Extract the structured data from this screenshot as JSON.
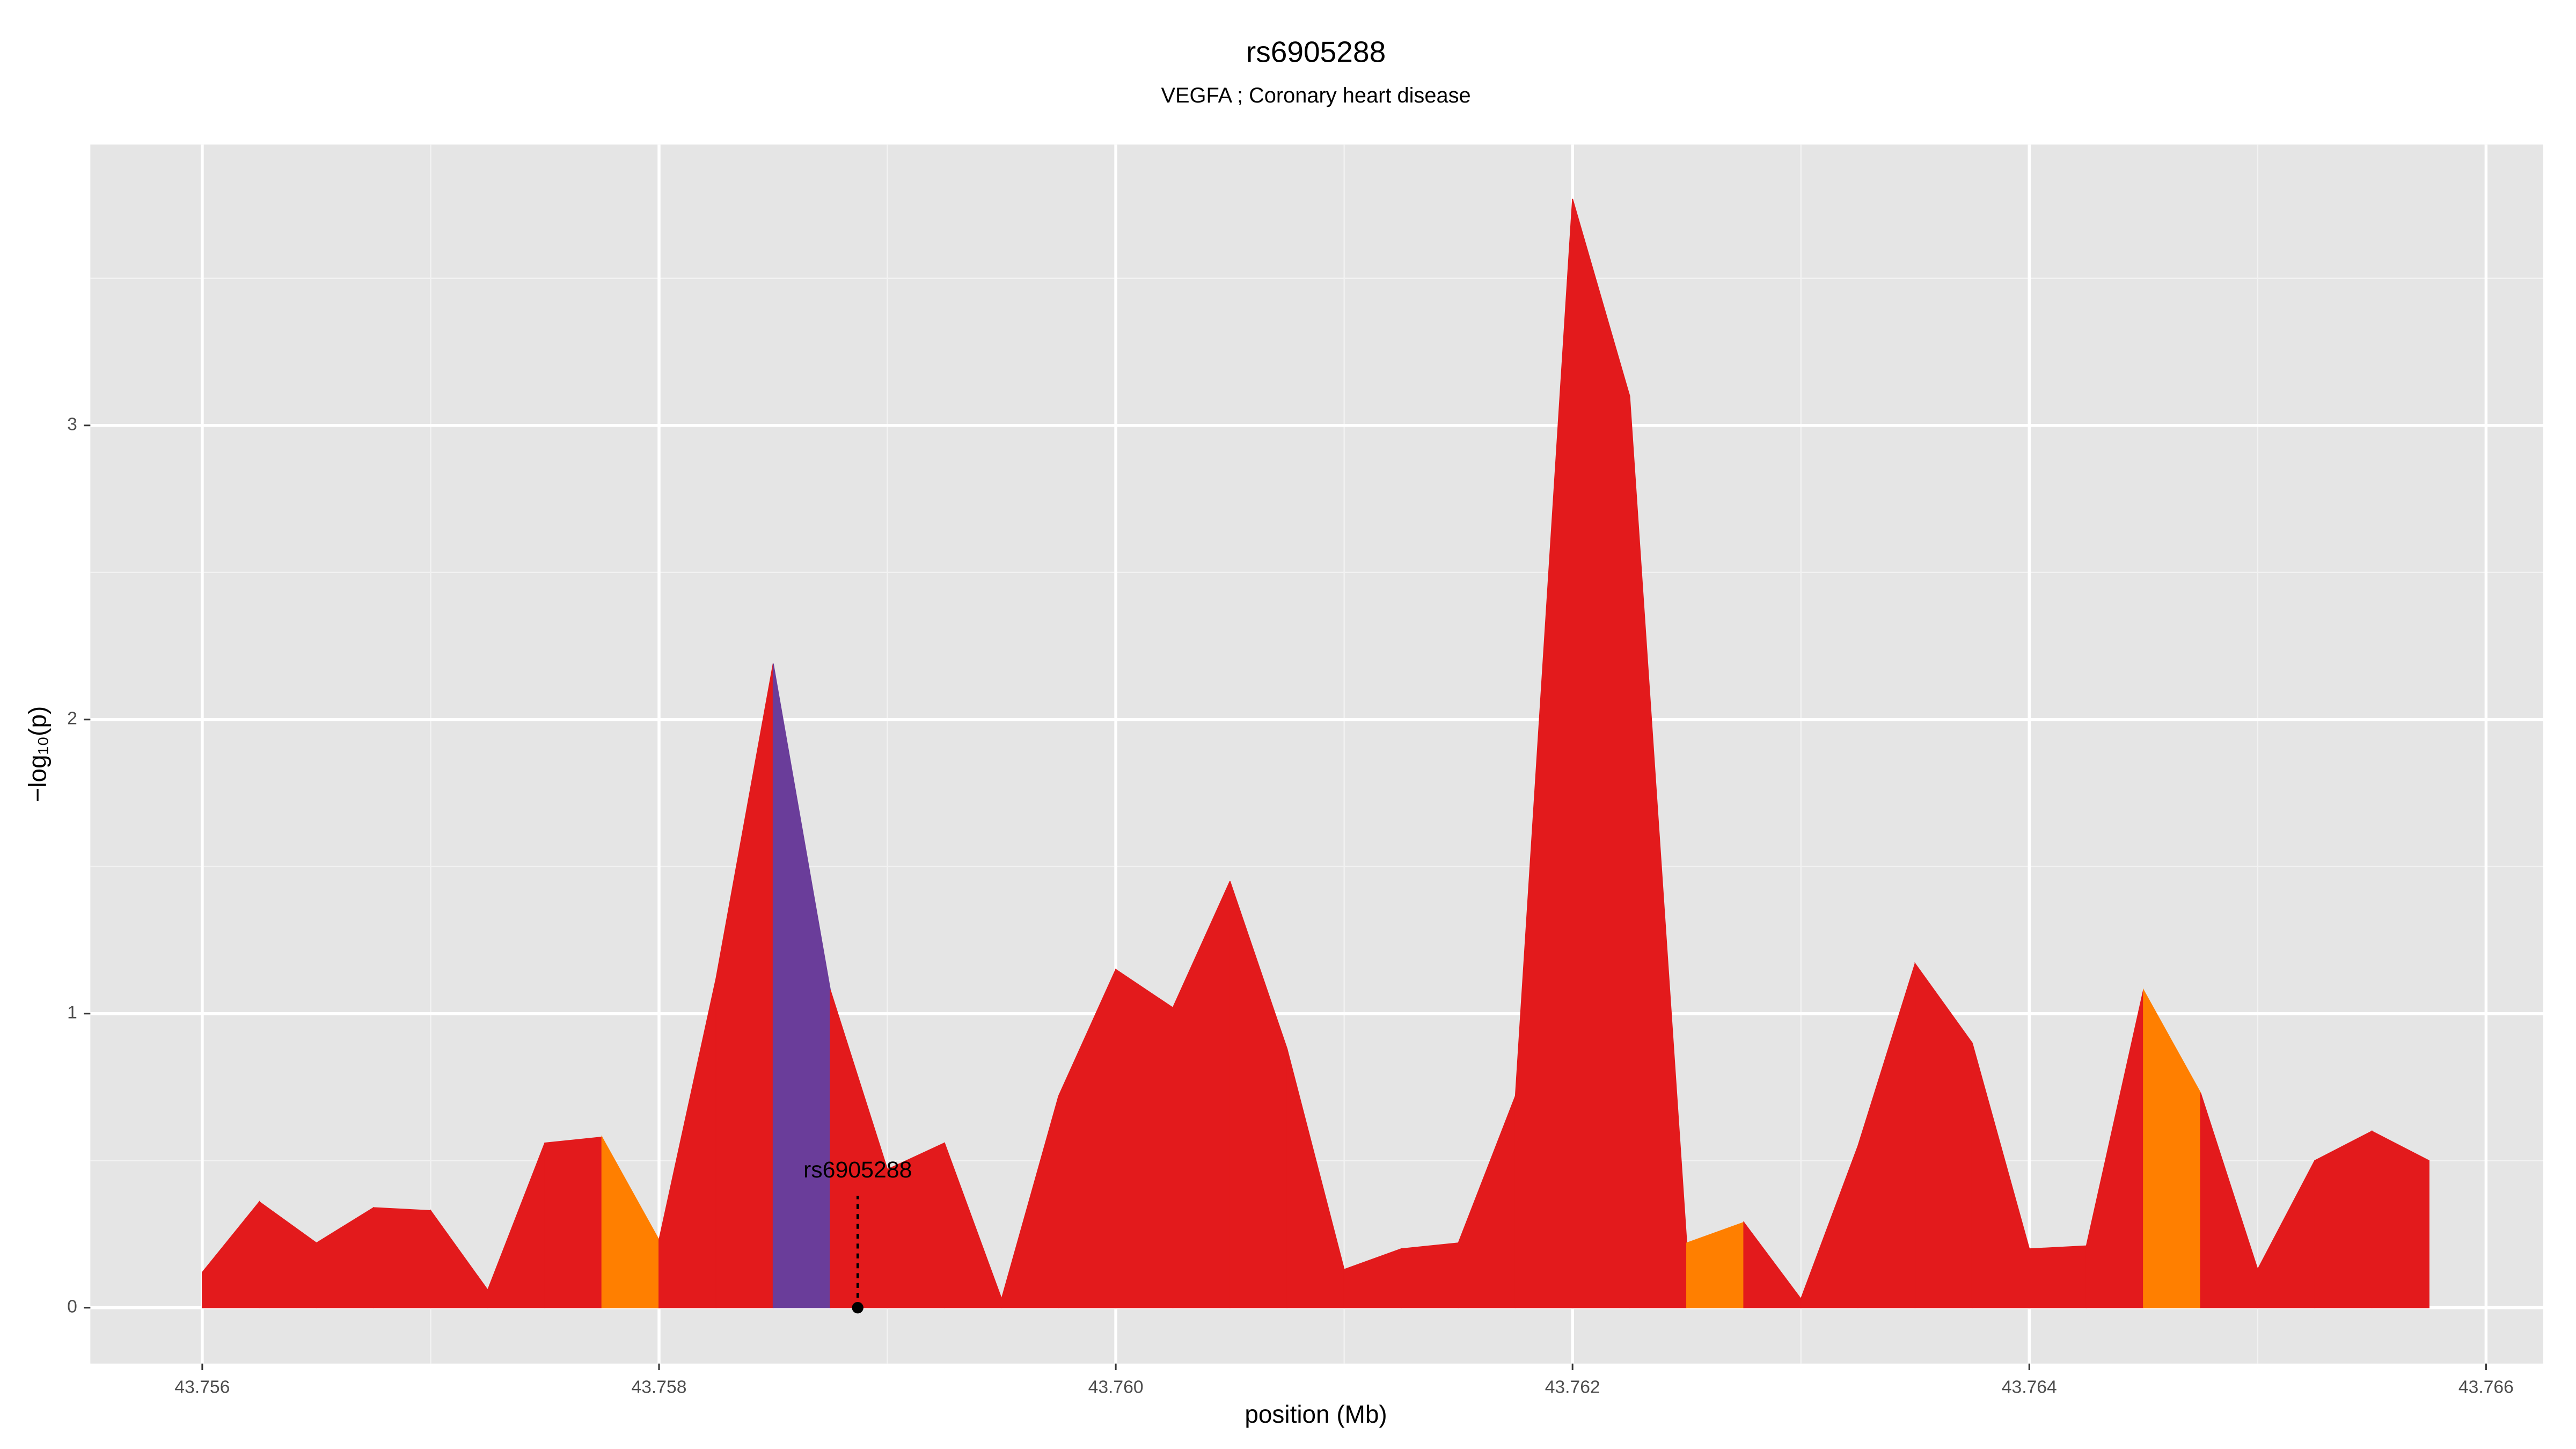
{
  "chart_data": {
    "type": "area",
    "title": "rs6905288",
    "subtitle": "VEGFA ; Coronary heart disease",
    "xlabel": "position (Mb)",
    "ylabel": "−log₁₀(p)",
    "x": [
      43.756,
      43.75625,
      43.7565,
      43.75675,
      43.757,
      43.75725,
      43.7575,
      43.75775,
      43.758,
      43.75825,
      43.7585,
      43.75875,
      43.759,
      43.75925,
      43.7595,
      43.75975,
      43.76,
      43.76025,
      43.7605,
      43.76075,
      43.761,
      43.76125,
      43.7615,
      43.76175,
      43.762,
      43.76225,
      43.7625,
      43.76275,
      43.763,
      43.76325,
      43.7635,
      43.76375,
      43.764,
      43.76425,
      43.7645,
      43.76475,
      43.765,
      43.76525,
      43.7655,
      43.76575
    ],
    "values": [
      0.12,
      0.36,
      0.22,
      0.34,
      0.33,
      0.06,
      0.56,
      0.58,
      0.23,
      1.12,
      2.19,
      1.08,
      0.47,
      0.56,
      0.03,
      0.72,
      1.15,
      1.02,
      1.45,
      0.88,
      0.13,
      0.2,
      0.22,
      0.72,
      3.77,
      3.1,
      0.22,
      0.29,
      0.03,
      0.55,
      1.17,
      0.9,
      0.2,
      0.21,
      1.08,
      0.73,
      0.13,
      0.5,
      0.6,
      0.5
    ],
    "colors": [
      "#e31a1c",
      "#e31a1c",
      "#e31a1c",
      "#e31a1c",
      "#e31a1c",
      "#e31a1c",
      "#e31a1c",
      "#ff7f00",
      "#e31a1c",
      "#e31a1c",
      "#6a3d9a",
      "#e31a1c",
      "#e31a1c",
      "#e31a1c",
      "#e31a1c",
      "#e31a1c",
      "#e31a1c",
      "#e31a1c",
      "#e31a1c",
      "#e31a1c",
      "#e31a1c",
      "#e31a1c",
      "#e31a1c",
      "#e31a1c",
      "#e31a1c",
      "#e31a1c",
      "#ff7f00",
      "#e31a1c",
      "#e31a1c",
      "#e31a1c",
      "#e31a1c",
      "#e31a1c",
      "#e31a1c",
      "#e31a1c",
      "#ff7f00",
      "#e31a1c",
      "#e31a1c",
      "#e31a1c",
      "#e31a1c",
      "#e31a1c"
    ],
    "annotation": {
      "text": "rs6905288",
      "x": 43.75887,
      "y": 0
    },
    "xlim": [
      43.75551,
      43.76625
    ],
    "ylim": [
      -0.19,
      3.955
    ],
    "xticks": [
      43.756,
      43.758,
      {
        "value": 43.76,
        "label": "43.760"
      },
      43.762,
      43.764,
      43.766
    ],
    "yticks": [
      0,
      1,
      2,
      3
    ],
    "minor_xticks": [
      43.757,
      43.759,
      43.761,
      43.763,
      43.765
    ],
    "minor_yticks": [
      0.5,
      1.5,
      2.5,
      3.5
    ],
    "grid": true
  }
}
